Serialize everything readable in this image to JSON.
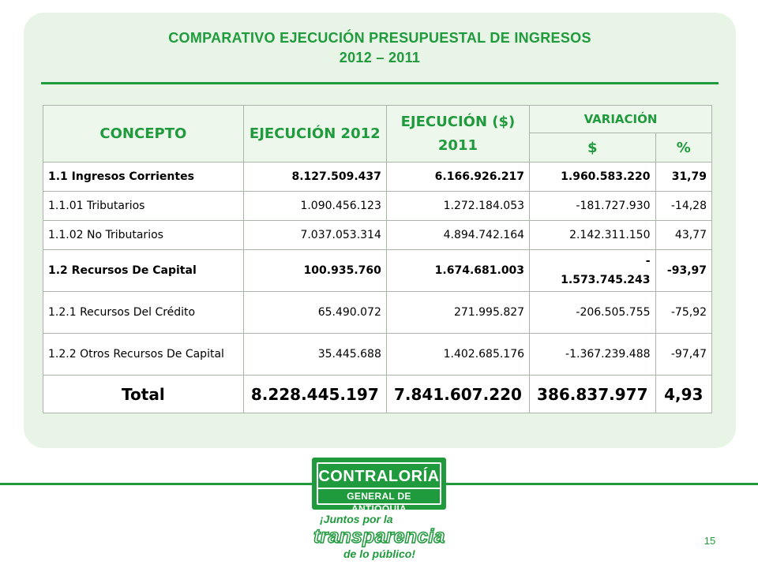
{
  "title": {
    "line1": "COMPARATIVO EJECUCIÓN PRESUPUESTAL DE INGRESOS",
    "line2": "2012 – 2011"
  },
  "table": {
    "headers": {
      "concept": "CONCEPTO",
      "exec2012": "EJECUCIÓN 2012",
      "exec2011": "EJECUCIÓN ($) 2011",
      "variation": "VARIACIÓN",
      "var_amount": "$",
      "var_percent": "%"
    },
    "rows": [
      {
        "concept": "1.1  Ingresos Corrientes",
        "exec2012": "8.127.509.437",
        "exec2011": "6.166.926.217",
        "var_amount": "1.960.583.220",
        "var_percent": "31,79"
      },
      {
        "concept": "1.1.01 Tributarios",
        "exec2012": "1.090.456.123",
        "exec2011": "1.272.184.053",
        "var_amount": "-181.727.930",
        "var_percent": "-14,28"
      },
      {
        "concept": "1.1.02 No Tributarios",
        "exec2012": "7.037.053.314",
        "exec2011": "4.894.742.164",
        "var_amount": "2.142.311.150",
        "var_percent": "43,77"
      },
      {
        "concept": "1.2  Recursos De Capital",
        "exec2012": "100.935.760",
        "exec2011": "1.674.681.003",
        "var_amount_line1": "-",
        "var_amount_line2": "1.573.745.243",
        "var_percent": "-93,97"
      },
      {
        "concept": "1.2.1 Recursos Del Crédito",
        "exec2012": "65.490.072",
        "exec2011": "271.995.827",
        "var_amount": "-206.505.755",
        "var_percent": "-75,92"
      },
      {
        "concept": "1.2.2 Otros Recursos De Capital",
        "exec2012": "35.445.688",
        "exec2011": "1.402.685.176",
        "var_amount": "-1.367.239.488",
        "var_percent": "-97,47"
      }
    ],
    "total": {
      "concept": "Total",
      "exec2012": "8.228.445.197",
      "exec2011": "7.841.607.220",
      "var_amount": "386.837.977",
      "var_percent": "4,93"
    }
  },
  "logo": {
    "line1": "CONTRALORÍA",
    "line2": "GENERAL DE ANTIOQUIA",
    "slogan1": "¡Juntos por la",
    "slogan2": "transparencia",
    "slogan3": "de lo público!"
  },
  "page_number": "15",
  "colors": {
    "brand_green": "#1f9a3c",
    "panel_bg": "#e8f4e6"
  }
}
